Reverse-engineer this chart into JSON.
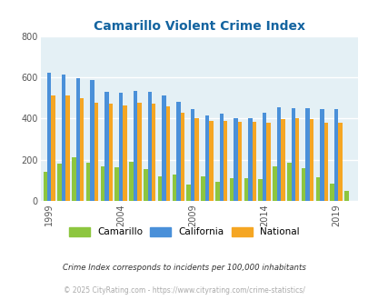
{
  "title": "Camarillo Violent Crime Index",
  "title_color": "#1464a0",
  "years": [
    1999,
    2000,
    2001,
    2002,
    2003,
    2004,
    2005,
    2006,
    2007,
    2008,
    2009,
    2010,
    2011,
    2012,
    2013,
    2014,
    2015,
    2016,
    2017,
    2018,
    2019,
    2020
  ],
  "camarillo": [
    140,
    180,
    210,
    185,
    170,
    165,
    190,
    155,
    120,
    130,
    80,
    120,
    95,
    110,
    110,
    105,
    170,
    185,
    160,
    115,
    85,
    50
  ],
  "california": [
    620,
    615,
    595,
    585,
    530,
    525,
    535,
    530,
    510,
    480,
    445,
    415,
    425,
    400,
    400,
    430,
    455,
    450,
    450,
    445,
    445,
    0
  ],
  "national": [
    510,
    510,
    500,
    475,
    470,
    465,
    475,
    470,
    460,
    430,
    400,
    390,
    390,
    385,
    385,
    380,
    395,
    400,
    395,
    380,
    380,
    0
  ],
  "camarillo_color": "#8dc63f",
  "california_color": "#4a90d9",
  "national_color": "#f5a623",
  "bg_color": "#e4f0f5",
  "ylim": [
    0,
    800
  ],
  "yticks": [
    0,
    200,
    400,
    600,
    800
  ],
  "xtick_years": [
    1999,
    2004,
    2009,
    2014,
    2019
  ],
  "footnote1": "Crime Index corresponds to incidents per 100,000 inhabitants",
  "footnote2": "© 2025 CityRating.com - https://www.cityrating.com/crime-statistics/",
  "footnote1_color": "#333333",
  "footnote2_color": "#aaaaaa",
  "legend_labels": [
    "Camarillo",
    "California",
    "National"
  ],
  "bar_width": 0.28
}
